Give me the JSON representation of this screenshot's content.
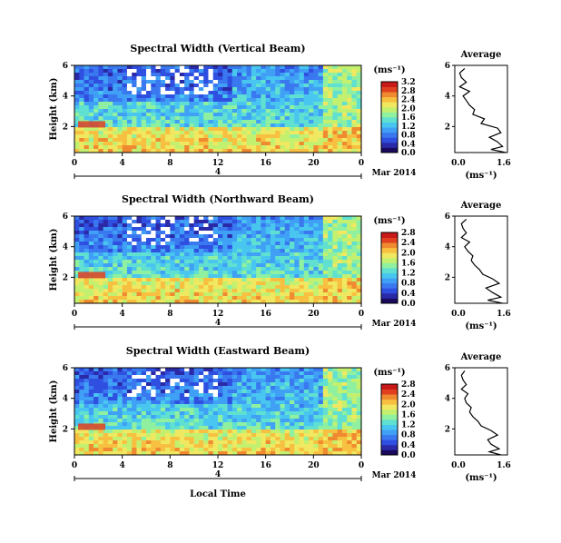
{
  "figure": {
    "xlabel": "Local Time",
    "date_label": "Mar 2014",
    "day_label": "4",
    "cbar_unit": "(ms⁻¹)",
    "avg_title": "Average",
    "avg_xlabel": "(ms⁻¹)",
    "ylabel": "Height (km)"
  },
  "colors": {
    "scale": [
      "#1a0a5e",
      "#2a2aa8",
      "#2f4fe0",
      "#3a78f0",
      "#3fa0f5",
      "#49c6f0",
      "#5fe0d0",
      "#8ff0a0",
      "#c4f070",
      "#f0e860",
      "#f8c040",
      "#f08a30",
      "#e04020",
      "#c81818"
    ]
  },
  "chart_data": [
    {
      "type": "heatmap",
      "title": "Spectral Width (Vertical Beam)",
      "x_ticks": [
        "0",
        "4",
        "8",
        "12",
        "16",
        "20",
        "0"
      ],
      "y_ticks": [
        "2",
        "4",
        "6"
      ],
      "xlim": [
        0,
        24
      ],
      "ylim": [
        0.3,
        6.0
      ],
      "colorbar": {
        "ticks": [
          "0.0",
          "0.4",
          "0.8",
          "1.2",
          "1.6",
          "2.0",
          "2.4",
          "2.8",
          "3.2"
        ],
        "range": [
          0,
          3.2
        ]
      },
      "profile": {
        "x_ticks": [
          "0.0",
          "1.6"
        ],
        "y_ticks": [
          "2",
          "4",
          "6"
        ],
        "xlim": [
          0,
          1.6
        ],
        "ylim": [
          0.3,
          6.0
        ],
        "height_km": [
          0.3,
          0.5,
          0.7,
          1.0,
          1.3,
          1.6,
          1.9,
          2.2,
          2.5,
          2.8,
          3.1,
          3.4,
          3.7,
          4.0,
          4.3,
          4.6,
          4.9,
          5.2,
          5.5,
          5.8
        ],
        "width_ms": [
          1.55,
          1.1,
          1.45,
          1.3,
          1.05,
          1.4,
          1.3,
          0.8,
          0.9,
          0.55,
          0.6,
          0.45,
          0.35,
          0.25,
          0.45,
          0.15,
          0.35,
          0.2,
          0.15,
          0.3
        ]
      }
    },
    {
      "type": "heatmap",
      "title": "Spectral Width (Northward Beam)",
      "x_ticks": [
        "0",
        "4",
        "8",
        "12",
        "16",
        "20",
        "0"
      ],
      "y_ticks": [
        "2",
        "4",
        "6"
      ],
      "xlim": [
        0,
        24
      ],
      "ylim": [
        0.3,
        6.0
      ],
      "colorbar": {
        "ticks": [
          "0.0",
          "0.4",
          "0.8",
          "1.2",
          "1.6",
          "2.0",
          "2.4",
          "2.8"
        ],
        "range": [
          0,
          2.8
        ]
      },
      "profile": {
        "x_ticks": [
          "0.0",
          "1.6"
        ],
        "y_ticks": [
          "2",
          "4",
          "6"
        ],
        "xlim": [
          0,
          1.6
        ],
        "ylim": [
          0.3,
          6.0
        ],
        "height_km": [
          0.3,
          0.5,
          0.7,
          1.0,
          1.3,
          1.6,
          1.9,
          2.2,
          2.5,
          2.8,
          3.1,
          3.4,
          3.7,
          4.0,
          4.3,
          4.6,
          4.9,
          5.2,
          5.5,
          5.8
        ],
        "width_ms": [
          1.45,
          1.0,
          1.4,
          1.15,
          0.95,
          1.35,
          1.15,
          0.85,
          0.75,
          0.6,
          0.5,
          0.55,
          0.4,
          0.3,
          0.45,
          0.2,
          0.35,
          0.25,
          0.2,
          0.35
        ]
      }
    },
    {
      "type": "heatmap",
      "title": "Spectral Width (Eastward Beam)",
      "x_ticks": [
        "0",
        "4",
        "8",
        "12",
        "16",
        "20",
        "0"
      ],
      "y_ticks": [
        "2",
        "4",
        "6"
      ],
      "xlim": [
        0,
        24
      ],
      "ylim": [
        0.3,
        6.0
      ],
      "colorbar": {
        "ticks": [
          "0.0",
          "0.4",
          "0.8",
          "1.2",
          "1.6",
          "2.0",
          "2.4",
          "2.8"
        ],
        "range": [
          0,
          2.8
        ]
      },
      "profile": {
        "x_ticks": [
          "0.0",
          "1.6"
        ],
        "y_ticks": [
          "2",
          "4",
          "6"
        ],
        "xlim": [
          0,
          1.6
        ],
        "ylim": [
          0.3,
          6.0
        ],
        "height_km": [
          0.3,
          0.5,
          0.7,
          1.0,
          1.3,
          1.6,
          1.9,
          2.2,
          2.5,
          2.8,
          3.1,
          3.4,
          3.7,
          4.0,
          4.3,
          4.6,
          4.9,
          5.2,
          5.5,
          5.8
        ],
        "width_ms": [
          1.4,
          1.05,
          1.35,
          1.1,
          1.0,
          1.3,
          1.1,
          0.8,
          0.7,
          0.55,
          0.45,
          0.5,
          0.35,
          0.3,
          0.4,
          0.2,
          0.35,
          0.25,
          0.2,
          0.3
        ]
      }
    }
  ]
}
